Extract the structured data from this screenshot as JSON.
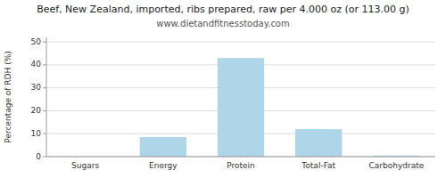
{
  "chart_data": {
    "type": "bar",
    "title": "Beef, New Zealand, imported, ribs prepared, raw per 4.000 oz (or 113.00 g)",
    "subtitle": "www.dietandfitnesstoday.com",
    "ylabel": "Percentage of RDH (%)",
    "categories": [
      "Sugars",
      "Energy",
      "Protein",
      "Total-Fat",
      "Carbohydrate"
    ],
    "values": [
      0.0,
      8.5,
      43.0,
      12.0,
      0.5
    ],
    "color": "#aed6e8",
    "ylim": [
      0,
      52
    ],
    "yticks": [
      0,
      10,
      20,
      30,
      40,
      50
    ],
    "grid": true
  }
}
